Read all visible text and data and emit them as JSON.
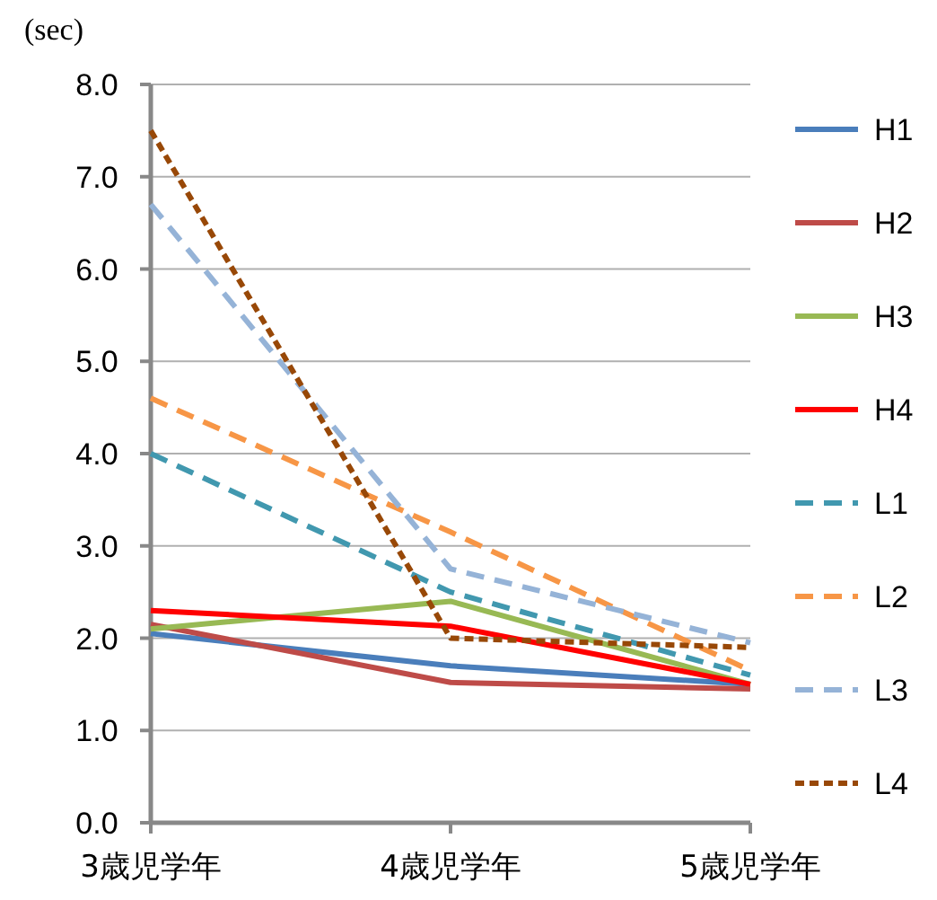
{
  "chart_data": {
    "type": "line",
    "ylabel": "(sec)",
    "categories": [
      "3歳児学年",
      "4歳児学年",
      "5歳児学年"
    ],
    "ylim": [
      0,
      8
    ],
    "yticks": [
      {
        "value": 0,
        "label": "0.0"
      },
      {
        "value": 1,
        "label": "1.0"
      },
      {
        "value": 2,
        "label": "2.0"
      },
      {
        "value": 3,
        "label": "3.0"
      },
      {
        "value": 4,
        "label": "4.0"
      },
      {
        "value": 5,
        "label": "5.0"
      },
      {
        "value": 6,
        "label": "6.0"
      },
      {
        "value": 7,
        "label": "7.0"
      },
      {
        "value": 8,
        "label": "8.0"
      }
    ],
    "grid": "y",
    "legend": "right",
    "marker": "none",
    "series": [
      {
        "name": "H1",
        "color": "#4a7ebb",
        "line_style": "solid",
        "values": [
          2.05,
          1.7,
          1.5
        ]
      },
      {
        "name": "H2",
        "color": "#be4b48",
        "line_style": "solid",
        "values": [
          2.15,
          1.52,
          1.45
        ]
      },
      {
        "name": "H3",
        "color": "#98b954",
        "line_style": "solid",
        "values": [
          2.1,
          2.4,
          1.5
        ]
      },
      {
        "name": "H4",
        "color": "#ff0000",
        "line_style": "solid",
        "values": [
          2.3,
          2.13,
          1.5
        ]
      },
      {
        "name": "L1",
        "color": "#4198af",
        "line_style": "dashed",
        "values": [
          4.0,
          2.5,
          1.6
        ]
      },
      {
        "name": "L2",
        "color": "#f79646",
        "line_style": "dashed",
        "values": [
          4.6,
          3.15,
          1.65
        ]
      },
      {
        "name": "L3",
        "color": "#95b3d7",
        "line_style": "dashed",
        "values": [
          6.7,
          2.75,
          1.95
        ]
      },
      {
        "name": "L4",
        "color": "#984807",
        "line_style": "dotted",
        "values": [
          7.5,
          2.0,
          1.9
        ]
      }
    ]
  }
}
